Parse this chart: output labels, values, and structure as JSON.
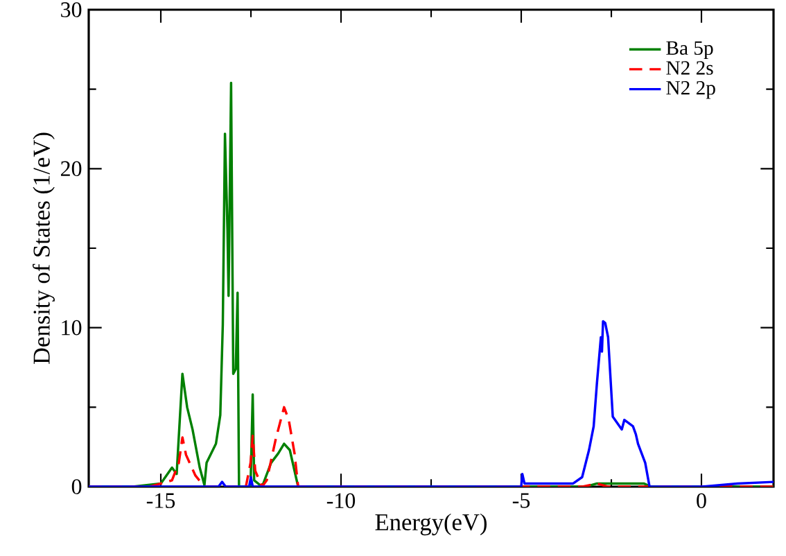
{
  "chart_data": {
    "type": "line",
    "xlabel": "Energy(eV)",
    "ylabel": "Density of States (1/eV)",
    "xlim": [
      -17,
      2
    ],
    "ylim": [
      0,
      30
    ],
    "xticks": [
      -15,
      {
        "value": -12.5,
        "label": null
      },
      -10,
      {
        "value": -7.5,
        "label": null
      },
      -5,
      {
        "value": -2.5,
        "label": null
      },
      0
    ],
    "yticks": [
      0,
      {
        "value": 5,
        "label": null
      },
      10,
      {
        "value": 15,
        "label": null
      },
      20,
      {
        "value": 25,
        "label": null
      },
      30
    ],
    "legend": "top right",
    "series": [
      {
        "name": "Ba 5p",
        "color": "#008000",
        "line_style": "solid",
        "x": [
          -17,
          -15.78,
          -15.0,
          -14.69,
          -14.56,
          -14.4,
          -14.27,
          -14.12,
          -13.92,
          -13.79,
          -13.73,
          -13.47,
          -13.35,
          -13.28,
          -13.22,
          -13.15,
          -13.12,
          -13.05,
          -12.99,
          -12.92,
          -12.87,
          -12.83,
          -12.51,
          -12.45,
          -12.41,
          -12.19,
          -11.94,
          -11.74,
          -11.58,
          -11.42,
          -11.29,
          -11.19,
          -3.2,
          -2.9,
          -1.6,
          -1.4,
          2
        ],
        "values": [
          0,
          0,
          0.2,
          1.2,
          0.8,
          7.1,
          5.0,
          3.6,
          1.2,
          0.1,
          1.5,
          2.7,
          4.5,
          10.2,
          22.2,
          16.1,
          12.0,
          25.4,
          7.1,
          7.4,
          12.2,
          0,
          0,
          5.8,
          0.4,
          0,
          1.5,
          2.1,
          2.7,
          2.3,
          1.0,
          0,
          0,
          0.2,
          0.2,
          0,
          0
        ]
      },
      {
        "name": "N2 2s",
        "color": "#ff0000",
        "line_style": "dashed",
        "x": [
          -17,
          -15.3,
          -14.69,
          -14.5,
          -14.4,
          -14.3,
          -14.04,
          -13.79,
          -12.64,
          -12.51,
          -12.45,
          -12.38,
          -12.19,
          -12.06,
          -11.81,
          -11.58,
          -11.45,
          -11.29,
          -11.19,
          -3.3,
          -2.9,
          -2.6,
          2
        ],
        "values": [
          0,
          0,
          0.4,
          1.5,
          3.1,
          2.0,
          0.7,
          0,
          0,
          1.5,
          3.2,
          1.0,
          0,
          0.4,
          3.0,
          5.0,
          4.2,
          2.1,
          0,
          0,
          0.2,
          0,
          0
        ]
      },
      {
        "name": "N2 2p",
        "color": "#0000ff",
        "line_style": "solid",
        "x": [
          -17,
          -13.4,
          -13.3,
          -13.2,
          -12.55,
          -12.5,
          -12.45,
          -5.0,
          -4.97,
          -4.91,
          -3.56,
          -3.31,
          -3.12,
          -2.99,
          -2.9,
          -2.79,
          -2.76,
          -2.73,
          -2.67,
          -2.59,
          -2.46,
          -2.21,
          -2.14,
          -1.9,
          -1.82,
          -1.76,
          -1.56,
          -1.44,
          0,
          1,
          2
        ],
        "values": [
          0,
          0,
          0.3,
          0,
          0,
          0.6,
          0,
          0,
          0.8,
          0.2,
          0.2,
          0.6,
          2.3,
          3.8,
          6.5,
          9.4,
          8.5,
          10.4,
          10.3,
          9.4,
          4.4,
          3.6,
          4.2,
          3.8,
          3.3,
          2.7,
          1.5,
          0,
          0,
          0.2,
          0.3
        ]
      }
    ]
  }
}
